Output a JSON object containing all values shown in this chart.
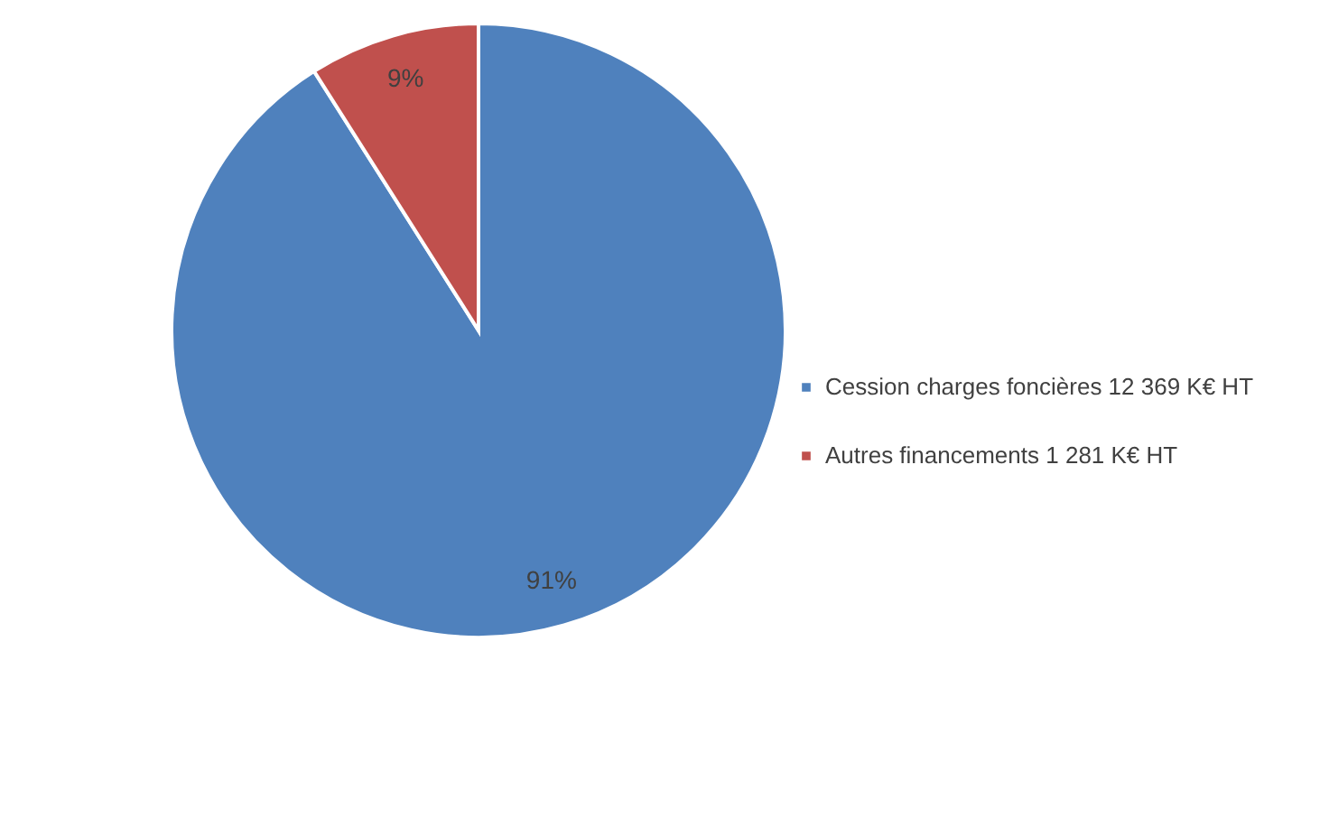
{
  "chart_data": {
    "type": "pie",
    "categories": [
      "Cession charges foncières 12 369 K€ HT",
      "Autres financements 1 281 K€ HT"
    ],
    "values": [
      91,
      9
    ],
    "colors": [
      "#4f81bd",
      "#c0504d"
    ],
    "value_labels": [
      "91%",
      "9%"
    ],
    "legend": "right"
  }
}
